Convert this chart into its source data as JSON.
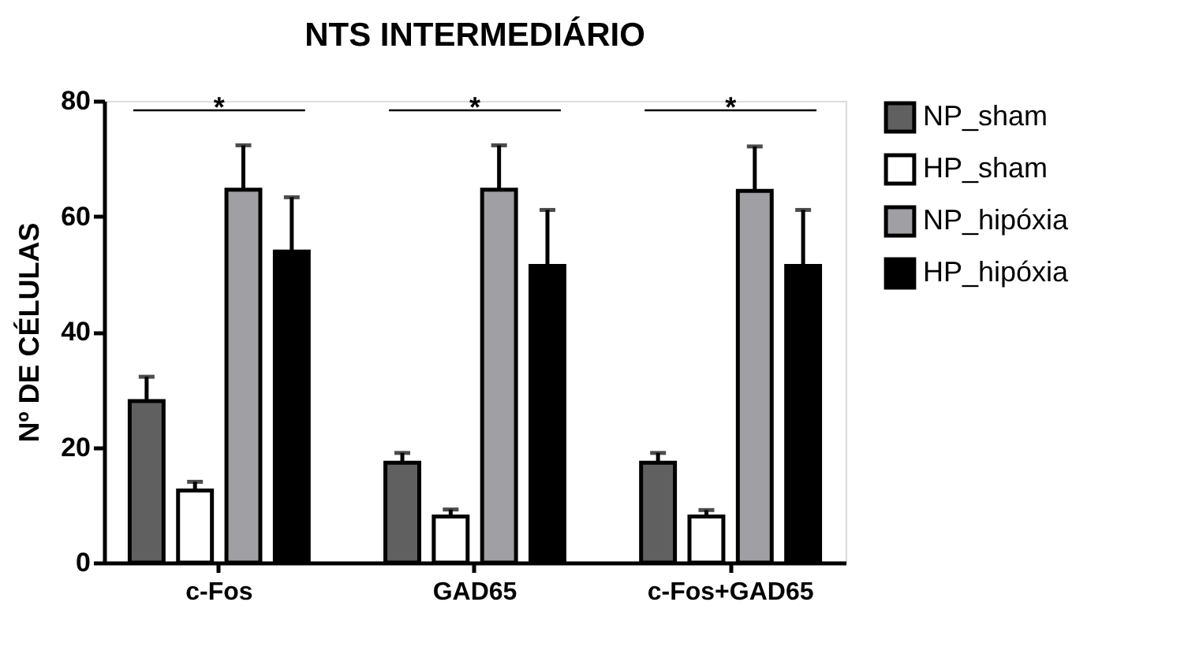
{
  "chart_data": {
    "type": "bar",
    "title": "NTS INTERMEDIÁRIO",
    "ylabel": "Nº DE CÉLULAS",
    "categories": [
      "c-Fos",
      "GAD65",
      "c-Fos+GAD65"
    ],
    "series": [
      {
        "name": "NP_sham",
        "color": "#606060",
        "values": [
          28,
          17.3,
          17.3
        ],
        "errors": [
          [
            28,
            32.2
          ],
          [
            17.3,
            19.0
          ],
          [
            17.3,
            19.0
          ]
        ]
      },
      {
        "name": "HP_sham",
        "color": "#ffffff",
        "values": [
          12.5,
          8.0,
          8.0
        ],
        "errors": [
          [
            12.5,
            14.0
          ],
          [
            8.0,
            9.2
          ],
          [
            8.0,
            9.1
          ]
        ]
      },
      {
        "name": "NP_hipóxia",
        "color": "#a0a0a4",
        "values": [
          64.6,
          64.6,
          64.4
        ],
        "errors": [
          [
            64.6,
            72.3
          ],
          [
            64.6,
            72.3
          ],
          [
            64.4,
            72.1
          ]
        ]
      },
      {
        "name": "HP_hipóxia",
        "color": "#000000",
        "values": [
          53.9,
          51.4,
          51.4
        ],
        "errors": [
          [
            53.9,
            63.3
          ],
          [
            51.4,
            61.1
          ],
          [
            51.4,
            61.1
          ]
        ]
      }
    ],
    "ylim": [
      0,
      80
    ],
    "yticks": [
      0,
      20,
      40,
      60,
      80
    ],
    "grid": false,
    "legend": "top right",
    "annotations": [
      "*",
      "*",
      "*"
    ]
  }
}
